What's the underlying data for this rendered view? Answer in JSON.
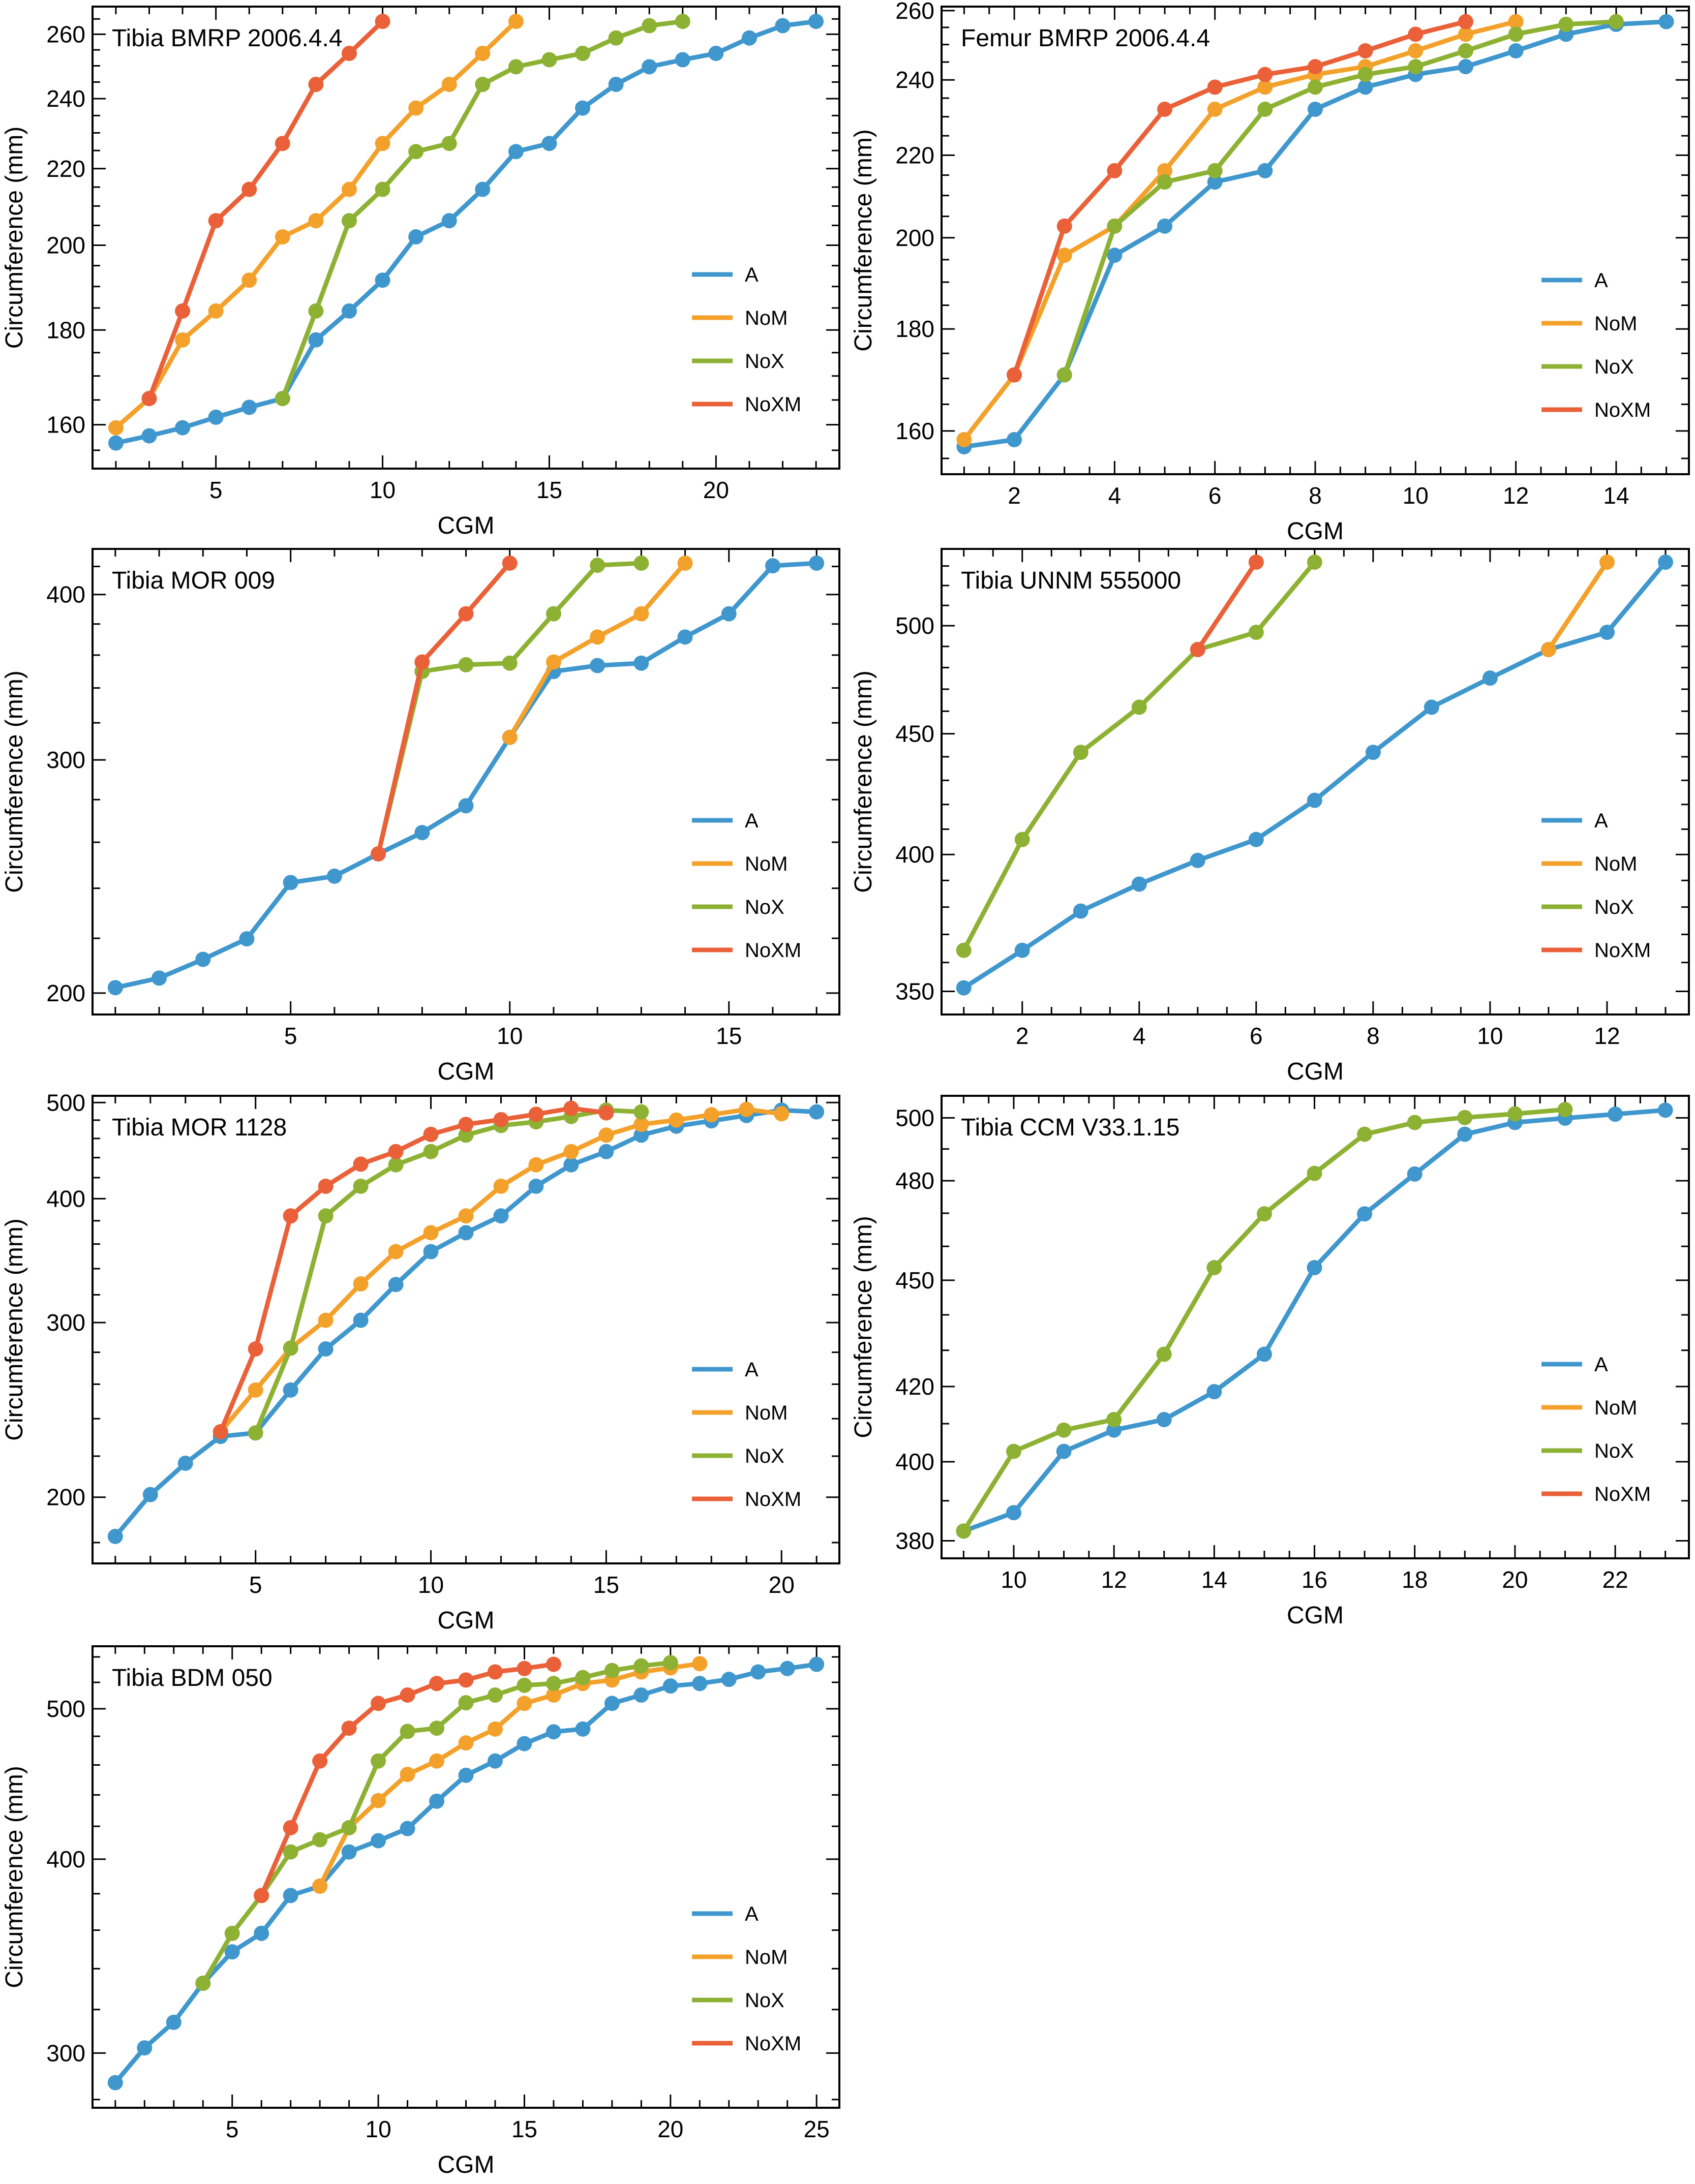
{
  "figure": {
    "series_names": [
      "A",
      "NoM",
      "NoX",
      "NoXM"
    ],
    "colors": {
      "A": "#3F97CD",
      "NoM": "#F3A12A",
      "NoX": "#8DB133",
      "NoXM": "#EA6038"
    },
    "xlabel": "CGM",
    "ylabel": "Circumference (mm)"
  },
  "chart_data": [
    {
      "type": "line",
      "title": "Tibia BMRP 2006.4.4",
      "xlabel": "CGM",
      "ylabel": "Circumference (mm)",
      "yscale": "log",
      "xlim": [
        1.3,
        23.7
      ],
      "ylim": [
        151.5,
        269.1
      ],
      "xticks": [
        5,
        10,
        15,
        20
      ],
      "xminor_step": 1,
      "yticks": [
        160,
        180,
        200,
        220,
        240,
        260
      ],
      "yminor_step": 5,
      "legend": "right-lower",
      "series": [
        {
          "name": "A",
          "x": [
            2,
            3,
            4,
            5,
            6,
            7,
            8,
            9,
            10,
            11,
            12,
            13,
            14,
            15,
            16,
            17,
            18,
            19,
            20,
            21,
            22,
            23
          ],
          "y": [
            156.4,
            157.8,
            159.4,
            161.5,
            163.5,
            165.3,
            177.8,
            184.3,
            191.5,
            202.1,
            206.2,
            214.4,
            224.7,
            227.0,
            237.2,
            244.3,
            249.7,
            251.9,
            253.9,
            258.8,
            262.8,
            264.2
          ]
        },
        {
          "name": "NoM",
          "x": [
            2,
            3,
            4,
            5,
            6,
            7,
            8,
            9,
            10,
            11,
            12,
            13,
            14
          ],
          "y": [
            159.4,
            165.3,
            177.8,
            184.3,
            191.5,
            202.1,
            206.2,
            214.4,
            227.0,
            237.2,
            244.3,
            253.9,
            264.2
          ]
        },
        {
          "name": "NoX",
          "x": [
            7,
            8,
            9,
            10,
            11,
            12,
            13,
            14,
            15,
            16,
            17,
            18,
            19
          ],
          "y": [
            165.3,
            184.3,
            206.2,
            214.4,
            224.7,
            227.0,
            244.3,
            249.7,
            251.9,
            253.9,
            258.8,
            262.8,
            264.2
          ]
        },
        {
          "name": "NoXM",
          "x": [
            3,
            4,
            5,
            6,
            7,
            8,
            9,
            10
          ],
          "y": [
            165.3,
            184.3,
            206.2,
            214.4,
            227.0,
            244.3,
            253.9,
            264.2
          ]
        }
      ]
    },
    {
      "type": "line",
      "title": "Femur BMRP 2006.4.4",
      "xlabel": "CGM",
      "ylabel": "Circumference (mm)",
      "yscale": "log",
      "xlim": [
        0.55,
        15.45
      ],
      "ylim": [
        152.2,
        261.2
      ],
      "xticks": [
        2,
        4,
        6,
        8,
        10,
        12,
        14
      ],
      "xminor_step": 0.5,
      "yticks": [
        160,
        180,
        200,
        220,
        240,
        260
      ],
      "yminor_step": 5,
      "legend": "right-lower",
      "series": [
        {
          "name": "A",
          "x": [
            1,
            2,
            3,
            4,
            5,
            6,
            7,
            8,
            9,
            10,
            11,
            12,
            13,
            14,
            15
          ],
          "y": [
            157.1,
            158.4,
            170.7,
            196.0,
            202.7,
            213.3,
            216.1,
            232.0,
            238.0,
            241.5,
            243.7,
            248.2,
            253.0,
            255.9,
            256.7
          ]
        },
        {
          "name": "NoM",
          "x": [
            1,
            2,
            3,
            4,
            5,
            6,
            7,
            8,
            9,
            10,
            11,
            12
          ],
          "y": [
            158.4,
            170.7,
            196.0,
            202.7,
            216.1,
            232.0,
            238.0,
            241.5,
            243.7,
            248.2,
            253.0,
            256.7
          ]
        },
        {
          "name": "NoX",
          "x": [
            3,
            4,
            5,
            6,
            7,
            8,
            9,
            10,
            11,
            12,
            13,
            14
          ],
          "y": [
            170.7,
            202.7,
            213.3,
            216.1,
            232.0,
            238.0,
            241.5,
            243.7,
            248.2,
            253.0,
            255.9,
            256.7
          ]
        },
        {
          "name": "NoXM",
          "x": [
            2,
            3,
            4,
            5,
            6,
            7,
            8,
            9,
            10,
            11
          ],
          "y": [
            170.7,
            202.7,
            216.1,
            232.0,
            238.0,
            241.5,
            243.7,
            248.2,
            253.0,
            256.7
          ]
        }
      ]
    },
    {
      "type": "line",
      "title": "Tibia MOR 009",
      "xlabel": "CGM",
      "ylabel": "Circumference (mm)",
      "yscale": "log",
      "xlim": [
        0.48,
        17.52
      ],
      "ylim": [
        192.7,
        433.0
      ],
      "xticks": [
        5,
        10,
        15
      ],
      "xminor_step": 1,
      "yticks": [
        200,
        300,
        400
      ],
      "yminor_step": 20,
      "legend": "right-lower",
      "series": [
        {
          "name": "A",
          "x": [
            1,
            2,
            3,
            4,
            5,
            6,
            7,
            8,
            9,
            10,
            11,
            12,
            13,
            14,
            15,
            16,
            17
          ],
          "y": [
            201.9,
            205.3,
            212.1,
            219.8,
            242.4,
            245.1,
            254.8,
            264.4,
            277.0,
            312.0,
            349.9,
            353.5,
            355.0,
            371.5,
            386.8,
            420.5,
            422.4
          ]
        },
        {
          "name": "NoM",
          "x": [
            10,
            11,
            12,
            13,
            14
          ],
          "y": [
            312.0,
            355.7,
            371.5,
            386.8,
            422.4
          ]
        },
        {
          "name": "NoX",
          "x": [
            7,
            8,
            9,
            10,
            11,
            12,
            13
          ],
          "y": [
            254.8,
            349.9,
            354.0,
            355.0,
            386.8,
            420.9,
            422.4
          ]
        },
        {
          "name": "NoXM",
          "x": [
            7,
            8,
            9,
            10
          ],
          "y": [
            254.8,
            355.7,
            386.8,
            422.4
          ]
        }
      ]
    },
    {
      "type": "line",
      "title": "Tibia UNNM 555000",
      "xlabel": "CGM",
      "ylabel": "Circumference (mm)",
      "yscale": "log",
      "xlim": [
        0.62,
        13.4
      ],
      "ylim": [
        342.2,
        538.9
      ],
      "xticks": [
        2,
        4,
        6,
        8,
        10,
        12
      ],
      "xminor_step": 0.5,
      "yticks": [
        350,
        400,
        450,
        500
      ],
      "yminor_step": 10,
      "legend": "right-lower",
      "series": [
        {
          "name": "A",
          "x": [
            1,
            2,
            3,
            4,
            5,
            6,
            7,
            8,
            9,
            10,
            11,
            12,
            13
          ],
          "y": [
            351.2,
            364.3,
            378.5,
            388.6,
            397.7,
            405.9,
            421.7,
            441.9,
            461.8,
            475.1,
            488.5,
            496.8,
            532.0
          ]
        },
        {
          "name": "NoM",
          "x": [
            11,
            12
          ],
          "y": [
            488.5,
            532.0
          ]
        },
        {
          "name": "NoX",
          "x": [
            1,
            2,
            3,
            4,
            5,
            6,
            7
          ],
          "y": [
            364.3,
            405.9,
            441.9,
            461.8,
            488.5,
            496.8,
            532.0
          ]
        },
        {
          "name": "NoXM",
          "x": [
            5,
            6
          ],
          "y": [
            488.5,
            532.0
          ]
        }
      ]
    },
    {
      "type": "line",
      "title": "Tibia MOR 1128",
      "xlabel": "CGM",
      "ylabel": "Circumference (mm)",
      "yscale": "log",
      "xlim": [
        0.35,
        21.65
      ],
      "ylim": [
        171.5,
        507.9
      ],
      "xticks": [
        5,
        10,
        15,
        20
      ],
      "xminor_step": 1,
      "yticks": [
        200,
        300,
        400,
        500
      ],
      "yminor_step": 20,
      "legend": "right-lower",
      "series": [
        {
          "name": "A",
          "x": [
            1,
            2,
            3,
            4,
            5,
            6,
            7,
            8,
            9,
            10,
            11,
            12,
            13,
            14,
            15,
            16,
            17,
            18,
            19,
            20,
            21
          ],
          "y": [
            182.6,
            201.2,
            216.4,
            230.3,
            232.2,
            256.5,
            282.2,
            301.6,
            327.7,
            353.7,
            369.6,
            384.3,
            411.7,
            432.7,
            446.2,
            463.6,
            473.3,
            479.2,
            485.2,
            491.3,
            489.3
          ]
        },
        {
          "name": "NoM",
          "x": [
            4,
            5,
            6,
            7,
            8,
            9,
            10,
            11,
            12,
            13,
            14,
            15,
            16,
            17,
            18,
            19,
            20
          ],
          "y": [
            232.8,
            256.5,
            282.7,
            301.6,
            328.2,
            353.7,
            369.6,
            384.3,
            411.7,
            432.7,
            446.2,
            463.6,
            475.3,
            480.1,
            486.1,
            492.1,
            487.2
          ]
        },
        {
          "name": "NoX",
          "x": [
            5,
            6,
            7,
            8,
            9,
            10,
            11,
            12,
            13,
            14,
            15,
            16
          ],
          "y": [
            232.2,
            282.7,
            384.3,
            411.7,
            432.7,
            446.2,
            463.6,
            474.1,
            478.1,
            484.1,
            491.3,
            489.3
          ]
        },
        {
          "name": "NoXM",
          "x": [
            4,
            5,
            6,
            7,
            8,
            9,
            10,
            11,
            12,
            13,
            14,
            15
          ],
          "y": [
            232.8,
            282.2,
            384.3,
            411.7,
            433.4,
            446.2,
            464.4,
            475.3,
            480.6,
            486.6,
            493.4,
            488.2
          ]
        }
      ]
    },
    {
      "type": "line",
      "title": "Tibia CCM V33.1.15",
      "xlabel": "CGM",
      "ylabel": "Circumference (mm)",
      "yscale": "log",
      "xlim": [
        8.56,
        23.47
      ],
      "ylim": [
        375.7,
        507.2
      ],
      "xticks": [
        10,
        12,
        14,
        16,
        18,
        20,
        22
      ],
      "xminor_step": 0.5,
      "yticks": [
        380,
        400,
        420,
        450,
        480,
        500
      ],
      "yminor_step": 10,
      "legend": "right-lower",
      "series": [
        {
          "name": "A",
          "x": [
            9,
            10,
            11,
            12,
            13,
            14,
            15,
            16,
            17,
            18,
            19,
            20,
            21,
            22,
            23
          ],
          "y": [
            382.4,
            387.0,
            402.7,
            408.3,
            411.1,
            418.6,
            428.9,
            453.7,
            469.8,
            482.1,
            494.7,
            498.5,
            499.9,
            501.2,
            502.5
          ]
        },
        {
          "name": "NoM",
          "x": [],
          "y": []
        },
        {
          "name": "NoX",
          "x": [
            9,
            10,
            11,
            12,
            13,
            14,
            15,
            16,
            17,
            18,
            19,
            20,
            21
          ],
          "y": [
            382.4,
            402.7,
            408.3,
            411.1,
            428.9,
            453.7,
            469.8,
            482.3,
            494.7,
            498.5,
            500.1,
            501.3,
            502.7
          ]
        },
        {
          "name": "NoXM",
          "x": [],
          "y": []
        }
      ]
    },
    {
      "type": "line",
      "title": "Tibia BDM 050",
      "xlabel": "CGM",
      "ylabel": "Circumference (mm)",
      "yscale": "log",
      "xlim": [
        0.22,
        25.78
      ],
      "ylim": [
        276.6,
        548.6
      ],
      "xticks": [
        5,
        10,
        15,
        20,
        25
      ],
      "xminor_step": 1,
      "yticks": [
        300,
        400,
        500
      ],
      "yminor_step": 20,
      "legend": "right-lower",
      "series": [
        {
          "name": "A",
          "x": [
            1,
            2,
            3,
            4,
            5,
            6,
            7,
            8,
            9,
            10,
            11,
            12,
            13,
            14,
            15,
            16,
            17,
            18,
            19,
            20,
            21,
            22,
            23,
            24,
            25
          ],
          "y": [
            287.1,
            302.3,
            314.0,
            332.7,
            348.6,
            358.3,
            379.0,
            384.3,
            404.3,
            411.1,
            418.6,
            435.9,
            453.0,
            462.7,
            474.8,
            483.2,
            485.2,
            504.0,
            510.3,
            517.2,
            519.1,
            522.3,
            528.1,
            530.8,
            534.1
          ]
        },
        {
          "name": "NoM",
          "x": [
            8,
            9,
            10,
            11,
            12,
            13,
            14,
            15,
            16,
            17,
            18,
            19,
            20,
            21
          ],
          "y": [
            384.3,
            419.1,
            436.3,
            453.6,
            462.7,
            475.3,
            485.2,
            504.0,
            510.3,
            519.1,
            521.8,
            528.1,
            531.3,
            534.6
          ]
        },
        {
          "name": "NoX",
          "x": [
            4,
            5,
            6,
            7,
            8,
            9,
            10,
            11,
            12,
            13,
            14,
            15,
            16,
            17,
            18,
            19,
            20
          ],
          "y": [
            332.7,
            358.3,
            379.0,
            404.3,
            411.7,
            419.1,
            462.7,
            483.5,
            485.8,
            504.5,
            510.3,
            517.7,
            519.1,
            523.7,
            529.2,
            532.8,
            535.4
          ]
        },
        {
          "name": "NoXM",
          "x": [
            6,
            7,
            8,
            9,
            10,
            11,
            12,
            13,
            14,
            15,
            16
          ],
          "y": [
            379.0,
            419.1,
            462.7,
            485.8,
            504.0,
            510.3,
            519.1,
            521.8,
            528.1,
            530.8,
            534.1
          ]
        }
      ]
    }
  ]
}
